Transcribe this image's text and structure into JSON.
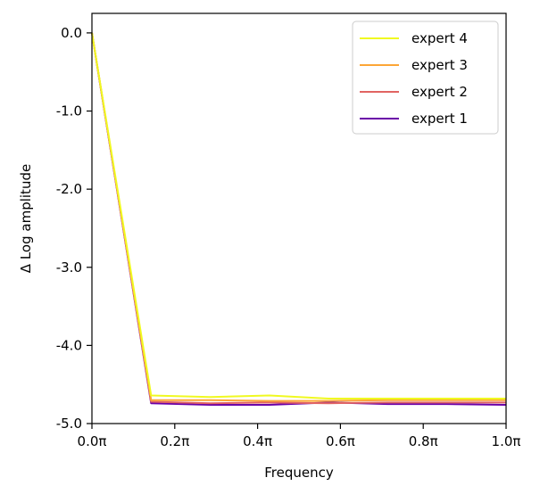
{
  "chart_data": {
    "type": "line",
    "xlabel": "Frequency",
    "ylabel": "Δ Log amplitude",
    "xlim": [
      0.0,
      1.0
    ],
    "ylim": [
      -5.0,
      0.25
    ],
    "x_ticks": [
      0.0,
      0.2,
      0.4,
      0.6,
      0.8,
      1.0
    ],
    "x_tick_labels": [
      "0.0π",
      "0.2π",
      "0.4π",
      "0.6π",
      "0.8π",
      "1.0π"
    ],
    "y_ticks": [
      0.0,
      -1.0,
      -2.0,
      -3.0,
      -4.0,
      -5.0
    ],
    "y_tick_labels": [
      "0.0",
      "-1.0",
      "-2.0",
      "-3.0",
      "-4.0",
      "-5.0"
    ],
    "x": [
      0.0,
      0.1429,
      0.2857,
      0.4286,
      0.5714,
      0.7143,
      0.8571,
      1.0
    ],
    "series": [
      {
        "name": "expert 4",
        "color": "#f0f921",
        "values": [
          0.0,
          -4.64,
          -4.66,
          -4.64,
          -4.68,
          -4.68,
          -4.68,
          -4.68
        ]
      },
      {
        "name": "expert 3",
        "color": "#fca636",
        "values": [
          0.0,
          -4.7,
          -4.7,
          -4.71,
          -4.71,
          -4.7,
          -4.7,
          -4.7
        ]
      },
      {
        "name": "expert 2",
        "color": "#e16462",
        "values": [
          0.0,
          -4.72,
          -4.74,
          -4.73,
          -4.74,
          -4.73,
          -4.73,
          -4.73
        ]
      },
      {
        "name": "expert 1",
        "color": "#6a00a8",
        "values": [
          0.0,
          -4.74,
          -4.76,
          -4.76,
          -4.73,
          -4.75,
          -4.75,
          -4.76
        ]
      }
    ],
    "legend": {
      "placement": "top-right",
      "order": [
        "expert 4",
        "expert 3",
        "expert 2",
        "expert 1"
      ]
    },
    "grid": false
  }
}
